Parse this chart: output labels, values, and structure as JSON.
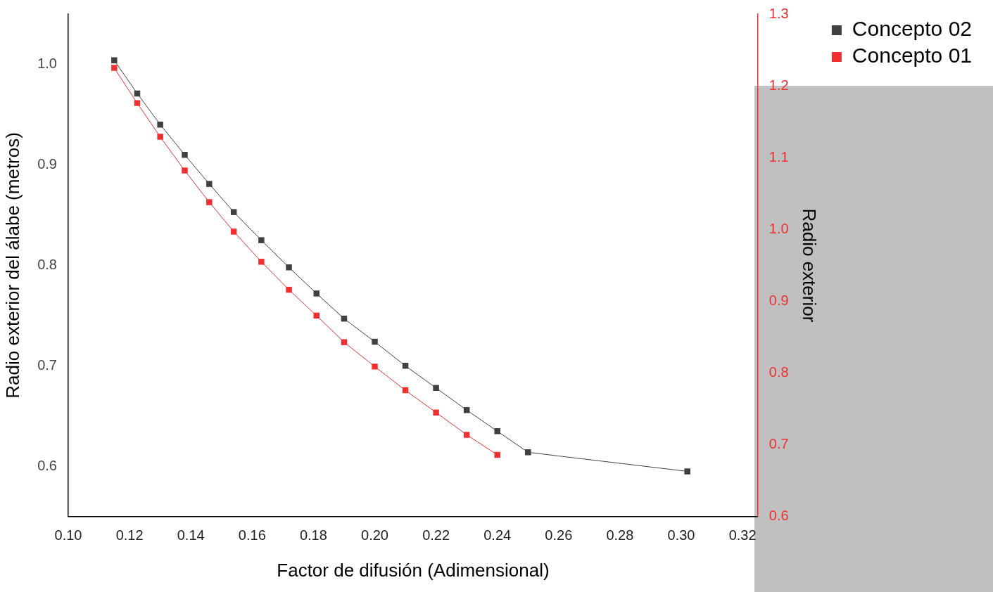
{
  "chart_data": {
    "type": "line",
    "xlabel": "Factor de difusión (Adimensional)",
    "ylabel": "Radio exterior del álabe (metros)",
    "y2label": "Radio exterior",
    "xlim": [
      0.1,
      0.325
    ],
    "xticks": [
      {
        "value": 0.1,
        "label": "0.10"
      },
      0.12,
      0.14,
      0.16,
      0.18,
      {
        "value": 0.2,
        "label": "0.20"
      },
      0.22,
      0.24,
      0.26,
      0.28,
      {
        "value": 0.3,
        "label": "0.30"
      },
      0.32
    ],
    "ylim": [
      0.55,
      1.05
    ],
    "yticks": [
      0.6,
      0.7,
      0.8,
      0.9,
      {
        "value": 1,
        "label": "1.0"
      }
    ],
    "y2lim": [
      0.6,
      1.3
    ],
    "y2ticks": [
      0.6,
      0.7,
      0.8,
      0.9,
      {
        "value": 1,
        "label": "1.0"
      },
      1.1,
      1.2,
      1.3
    ],
    "grid": false,
    "legend": "right",
    "marker": "square",
    "line_style": "solid",
    "series": [
      {
        "name": "Concepto 02",
        "color": "#404040",
        "x": [
          0.115,
          0.1225,
          0.13,
          0.138,
          0.146,
          0.154,
          0.163,
          0.172,
          0.181,
          0.19,
          0.2,
          0.21,
          0.22,
          0.23,
          0.24,
          0.25,
          0.302
        ],
        "values": [
          1.004,
          0.971,
          0.94,
          0.91,
          0.881,
          0.853,
          0.825,
          0.798,
          0.772,
          0.747,
          0.724,
          0.7,
          0.678,
          0.656,
          0.635,
          0.614,
          0.595
        ]
      },
      {
        "name": "Concepto 01",
        "color": "#f03030",
        "axis": "y2",
        "x": [
          0.115,
          0.1225,
          0.13,
          0.138,
          0.146,
          0.154,
          0.163,
          0.172,
          0.181,
          0.19,
          0.2,
          0.21,
          0.22,
          0.23,
          0.24
        ],
        "values": [
          1.225,
          1.176,
          1.129,
          1.082,
          1.038,
          0.997,
          0.955,
          0.916,
          0.88,
          0.843,
          0.809,
          0.776,
          0.745,
          0.714,
          0.686
        ]
      }
    ]
  }
}
